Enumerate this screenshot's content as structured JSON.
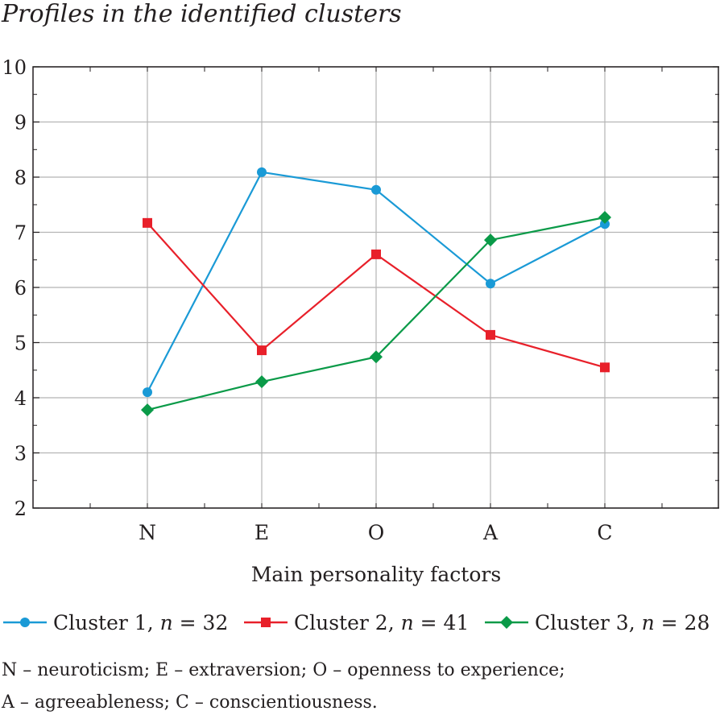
{
  "chart_data": {
    "type": "line",
    "title": "Profiles in the identified clusters",
    "xlabel": "Main personality factors",
    "ylabel": "",
    "categories": [
      "N",
      "E",
      "O",
      "A",
      "C"
    ],
    "ylim": [
      2,
      10
    ],
    "yticks": [
      "2",
      "3",
      "4",
      "5",
      "6",
      "7",
      "8",
      "9",
      "10"
    ],
    "grid": true,
    "legend_position": "bottom",
    "series": [
      {
        "name": "Cluster 1, ",
        "n_label": "n",
        "n_value": " = 32",
        "color": "#1a9ad6",
        "marker": "circle",
        "values": [
          4.1,
          8.09,
          7.77,
          6.07,
          7.15
        ]
      },
      {
        "name": "Cluster 2, ",
        "n_label": "n",
        "n_value": " = 41",
        "color": "#e8202a",
        "marker": "square",
        "values": [
          7.17,
          4.86,
          6.6,
          5.14,
          4.55
        ]
      },
      {
        "name": "Cluster 3, ",
        "n_label": "n",
        "n_value": " = 28",
        "color": "#0a9a48",
        "marker": "diamond",
        "values": [
          3.78,
          4.29,
          4.74,
          6.86,
          7.27
        ]
      }
    ],
    "footnote": [
      "N – neuroticism; E – extraversion; O – openness to experience;",
      "A – agreeableness; C – conscientiousness."
    ]
  }
}
